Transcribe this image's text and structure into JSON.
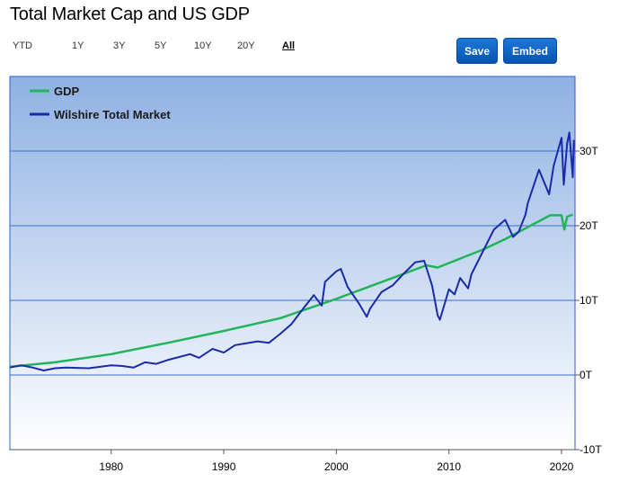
{
  "title": "Total Market Cap and US GDP",
  "ranges": [
    "YTD",
    "1Y",
    "3Y",
    "5Y",
    "10Y",
    "20Y",
    "All"
  ],
  "active_range": "All",
  "buttons": {
    "save": "Save",
    "embed": "Embed"
  },
  "colors": {
    "gdp": "#21b45a",
    "wilshire": "#1a2aa8",
    "bg_top": "#8fb1e3",
    "bg_bottom": "#ffffff",
    "grid": "#3a6fd0",
    "button": "#0a5fc8"
  },
  "chart_data": {
    "type": "line",
    "x_ticks": [
      "1980",
      "1990",
      "2000",
      "2010",
      "2020"
    ],
    "y_ticks": [
      "-10T",
      "0T",
      "10T",
      "20T",
      "30T"
    ],
    "xlim": [
      1971,
      2021.2
    ],
    "ylim": [
      -10,
      40
    ],
    "legend_position": "top-left",
    "series": [
      {
        "name": "GDP",
        "points": [
          [
            1971,
            1.1
          ],
          [
            1975,
            1.7
          ],
          [
            1980,
            2.8
          ],
          [
            1985,
            4.3
          ],
          [
            1990,
            5.9
          ],
          [
            1995,
            7.6
          ],
          [
            2000,
            10.2
          ],
          [
            2005,
            13.0
          ],
          [
            2008,
            14.7
          ],
          [
            2009,
            14.4
          ],
          [
            2010,
            15.0
          ],
          [
            2013,
            16.8
          ],
          [
            2015,
            18.2
          ],
          [
            2018,
            20.6
          ],
          [
            2019,
            21.4
          ],
          [
            2020,
            21.4
          ],
          [
            2020.25,
            19.5
          ],
          [
            2020.5,
            21.2
          ],
          [
            2021,
            21.5
          ]
        ]
      },
      {
        "name": "Wilshire Total Market",
        "points": [
          [
            1971,
            1.0
          ],
          [
            1972,
            1.3
          ],
          [
            1973,
            1.0
          ],
          [
            1974,
            0.6
          ],
          [
            1975,
            0.9
          ],
          [
            1976,
            1.0
          ],
          [
            1978,
            0.9
          ],
          [
            1980,
            1.3
          ],
          [
            1981,
            1.2
          ],
          [
            1982,
            1.0
          ],
          [
            1983,
            1.7
          ],
          [
            1984,
            1.5
          ],
          [
            1985,
            2.0
          ],
          [
            1987,
            2.8
          ],
          [
            1987.8,
            2.3
          ],
          [
            1989,
            3.5
          ],
          [
            1990,
            3.0
          ],
          [
            1991,
            4.0
          ],
          [
            1993,
            4.5
          ],
          [
            1994,
            4.3
          ],
          [
            1995,
            5.5
          ],
          [
            1996,
            6.8
          ],
          [
            1997,
            8.8
          ],
          [
            1998,
            10.7
          ],
          [
            1998.7,
            9.3
          ],
          [
            1999,
            12.5
          ],
          [
            2000,
            13.9
          ],
          [
            2000.4,
            14.2
          ],
          [
            2001,
            11.8
          ],
          [
            2002,
            9.6
          ],
          [
            2002.7,
            7.8
          ],
          [
            2003,
            8.9
          ],
          [
            2004,
            11.1
          ],
          [
            2005,
            12.0
          ],
          [
            2006,
            13.6
          ],
          [
            2007,
            15.1
          ],
          [
            2007.8,
            15.3
          ],
          [
            2008.5,
            12.0
          ],
          [
            2009,
            8.0
          ],
          [
            2009.2,
            7.4
          ],
          [
            2010,
            11.5
          ],
          [
            2010.5,
            10.8
          ],
          [
            2011,
            13.0
          ],
          [
            2011.7,
            11.6
          ],
          [
            2012,
            13.5
          ],
          [
            2013,
            16.5
          ],
          [
            2014,
            19.5
          ],
          [
            2015,
            20.8
          ],
          [
            2015.7,
            18.5
          ],
          [
            2016.2,
            19.2
          ],
          [
            2016.8,
            21.5
          ],
          [
            2017,
            23.0
          ],
          [
            2018,
            27.5
          ],
          [
            2018.9,
            24.2
          ],
          [
            2019.3,
            28.0
          ],
          [
            2020,
            31.8
          ],
          [
            2020.2,
            25.5
          ],
          [
            2020.5,
            31.0
          ],
          [
            2020.7,
            32.5
          ],
          [
            2021,
            26.5
          ],
          [
            2021.1,
            31.5
          ]
        ]
      }
    ]
  }
}
